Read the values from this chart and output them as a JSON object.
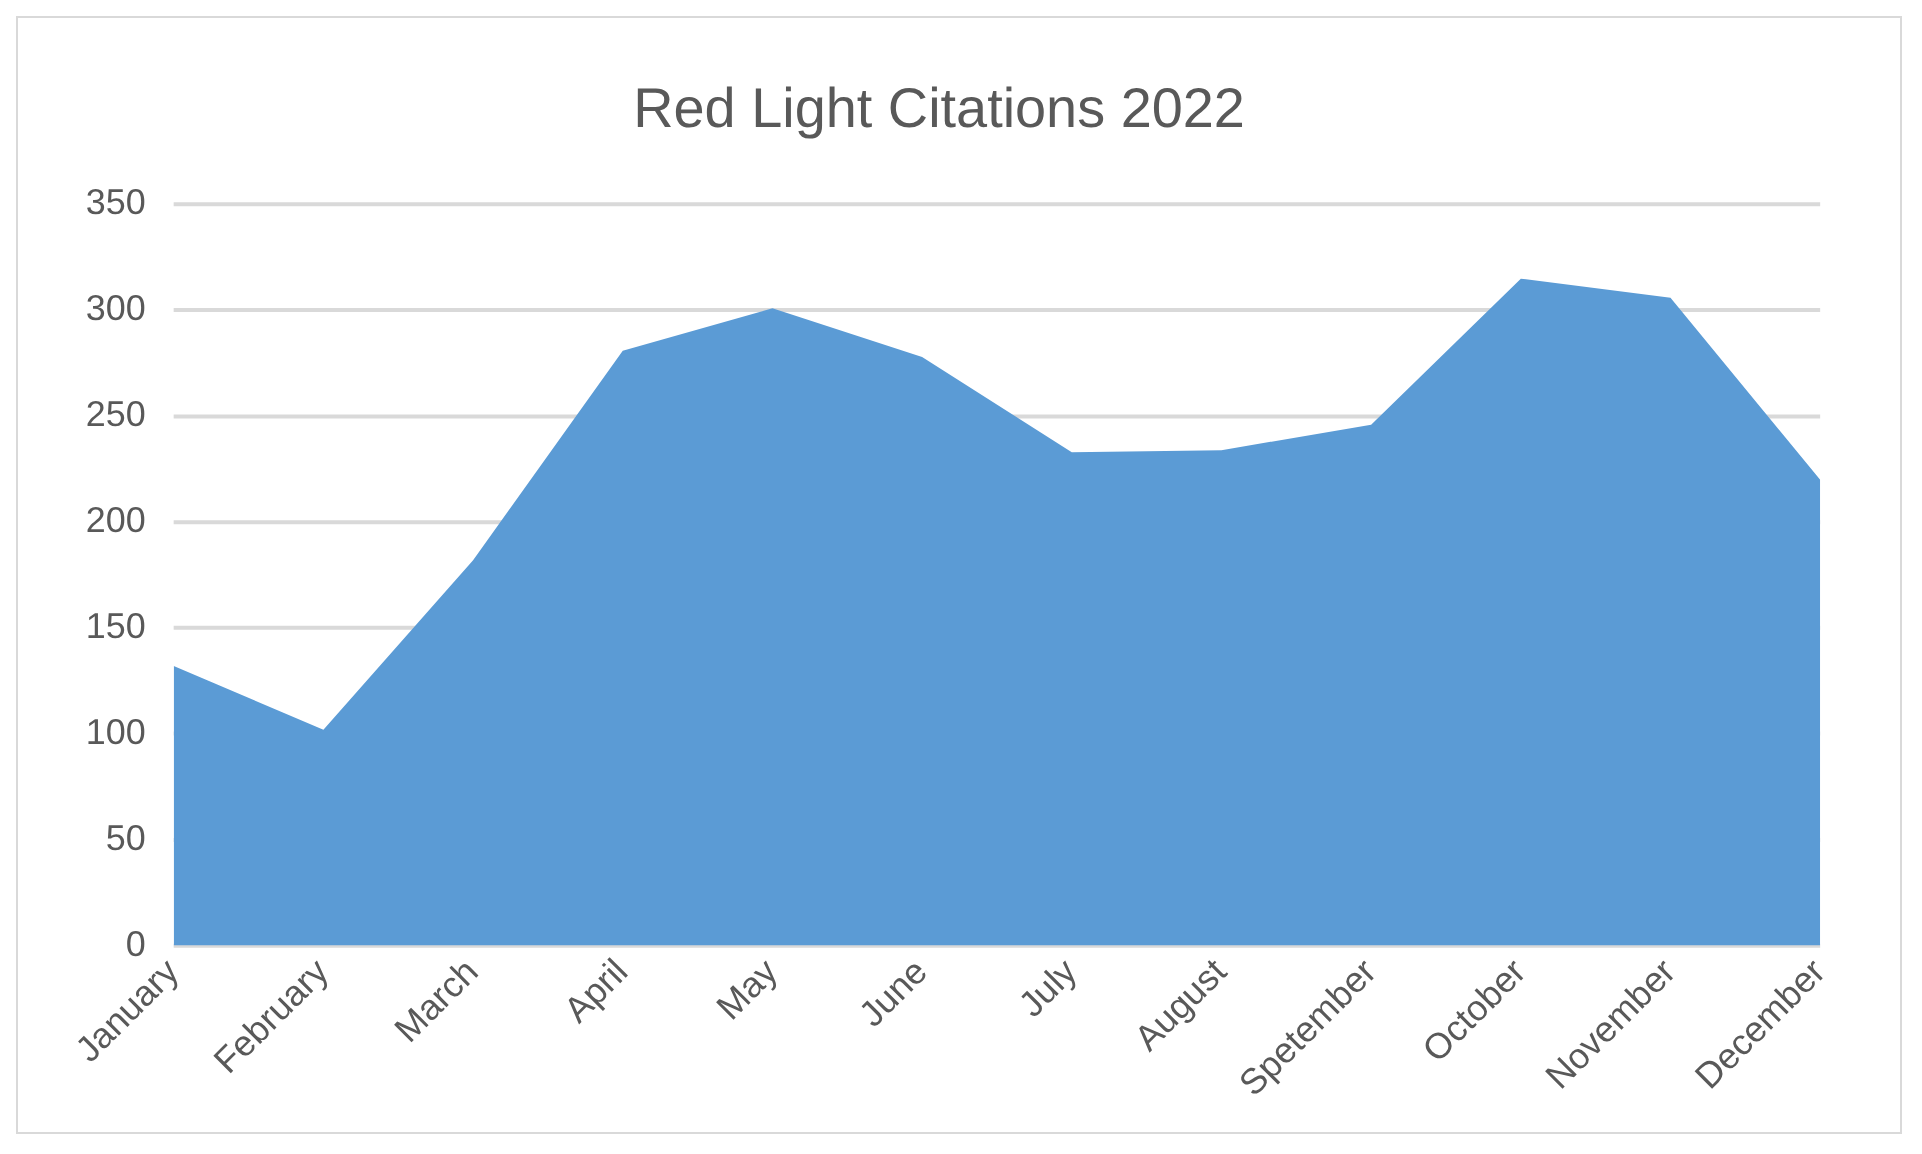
{
  "chart_data": {
    "type": "area",
    "title": "Red Light Citations 2022",
    "categories": [
      "January",
      "February",
      "March",
      "April",
      "May",
      "June",
      "July",
      "August",
      "Spetember",
      "October",
      "November",
      "December"
    ],
    "series": [
      {
        "color": "#5b9bd5",
        "values": [
          132,
          102,
          182,
          281,
          301,
          278,
          233,
          234,
          246,
          315,
          306,
          220
        ]
      }
    ],
    "ylim": [
      0,
      350
    ],
    "yticks": [
      0,
      50,
      100,
      150,
      200,
      250,
      300,
      350
    ],
    "grid": "y",
    "legend": false
  }
}
